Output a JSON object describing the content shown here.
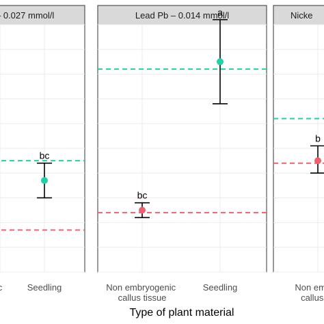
{
  "chart_data": {
    "type": "scatter",
    "xlabel": "Type of plant material",
    "ylim": [
      0,
      100
    ],
    "grid": true,
    "colors": {
      "point_high": "#1fd1a4",
      "point_low": "#f05f6c",
      "ref_line_high": "#1fd1a4",
      "ref_line_low": "#f05f6c",
      "error_bar": "#000000",
      "strip_bg": "#d9d9d9"
    },
    "panels": [
      {
        "title": "– 0.027 mmol/l",
        "categories": [
          "c",
          "Seedling"
        ],
        "points": [
          {
            "category": "Seedling",
            "value": 37,
            "lower": 30,
            "upper": 44,
            "label": "bc",
            "color": "#1fd1a4"
          }
        ],
        "ref_lines": [
          {
            "value": 45,
            "color": "#1fd1a4"
          },
          {
            "value": 17,
            "color": "#f05f6c"
          }
        ]
      },
      {
        "title": "Lead Pb – 0.014 mmol/l",
        "categories": [
          "Non embryogenic\ncallus tissue",
          "Seedling"
        ],
        "points": [
          {
            "category": "Non embryogenic\ncallus tissue",
            "value": 25,
            "lower": 22,
            "upper": 28,
            "label": "bc",
            "color": "#f05f6c"
          },
          {
            "category": "Seedling",
            "value": 85,
            "lower": 68,
            "upper": 102,
            "label": "a",
            "color": "#1fd1a4"
          }
        ],
        "ref_lines": [
          {
            "value": 82,
            "color": "#1fd1a4"
          },
          {
            "value": 24,
            "color": "#f05f6c"
          }
        ]
      },
      {
        "title": "Nicke",
        "categories": [
          "Non embry\ncallus tis"
        ],
        "points": [
          {
            "category": "Non embry\ncallus tis",
            "value": 45,
            "lower": 40,
            "upper": 51,
            "label": "b",
            "color": "#f05f6c"
          }
        ],
        "ref_lines": [
          {
            "value": 62,
            "color": "#1fd1a4"
          },
          {
            "value": 44,
            "color": "#f05f6c"
          }
        ]
      }
    ]
  }
}
